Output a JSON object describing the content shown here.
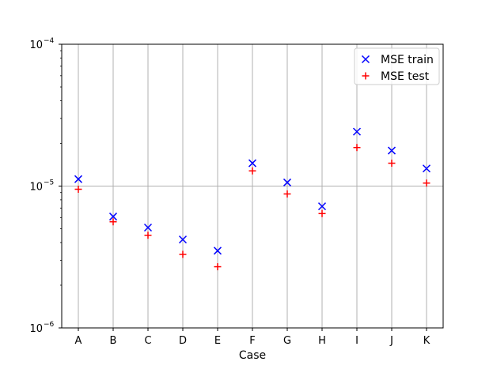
{
  "chart_data": {
    "type": "scatter",
    "title": "",
    "xlabel": "Case",
    "ylabel": "",
    "yscale": "log",
    "ylim": [
      1e-06,
      0.0001
    ],
    "y_tick_labels": [
      {
        "base": "10",
        "exp": "−6",
        "value": 1e-06
      },
      {
        "base": "10",
        "exp": "−5",
        "value": 1e-05
      },
      {
        "base": "10",
        "exp": "−4",
        "value": 0.0001
      }
    ],
    "categories": [
      "A",
      "B",
      "C",
      "D",
      "E",
      "F",
      "G",
      "H",
      "I",
      "J",
      "K"
    ],
    "grid": "vertical lines at each case and horizontal line at 1e-5",
    "legend_position": "top-right",
    "series": [
      {
        "name": "MSE train",
        "marker": "x",
        "color": "#0000ff",
        "values": [
          1.12e-05,
          6.1e-06,
          5.1e-06,
          4.2e-06,
          3.5e-06,
          1.45e-05,
          1.06e-05,
          7.2e-06,
          2.42e-05,
          1.78e-05,
          1.33e-05
        ]
      },
      {
        "name": "MSE test",
        "marker": "+",
        "color": "#ff0000",
        "values": [
          9.5e-06,
          5.6e-06,
          4.5e-06,
          3.3e-06,
          2.7e-06,
          1.28e-05,
          8.8e-06,
          6.4e-06,
          1.87e-05,
          1.45e-05,
          1.05e-05
        ]
      }
    ]
  }
}
